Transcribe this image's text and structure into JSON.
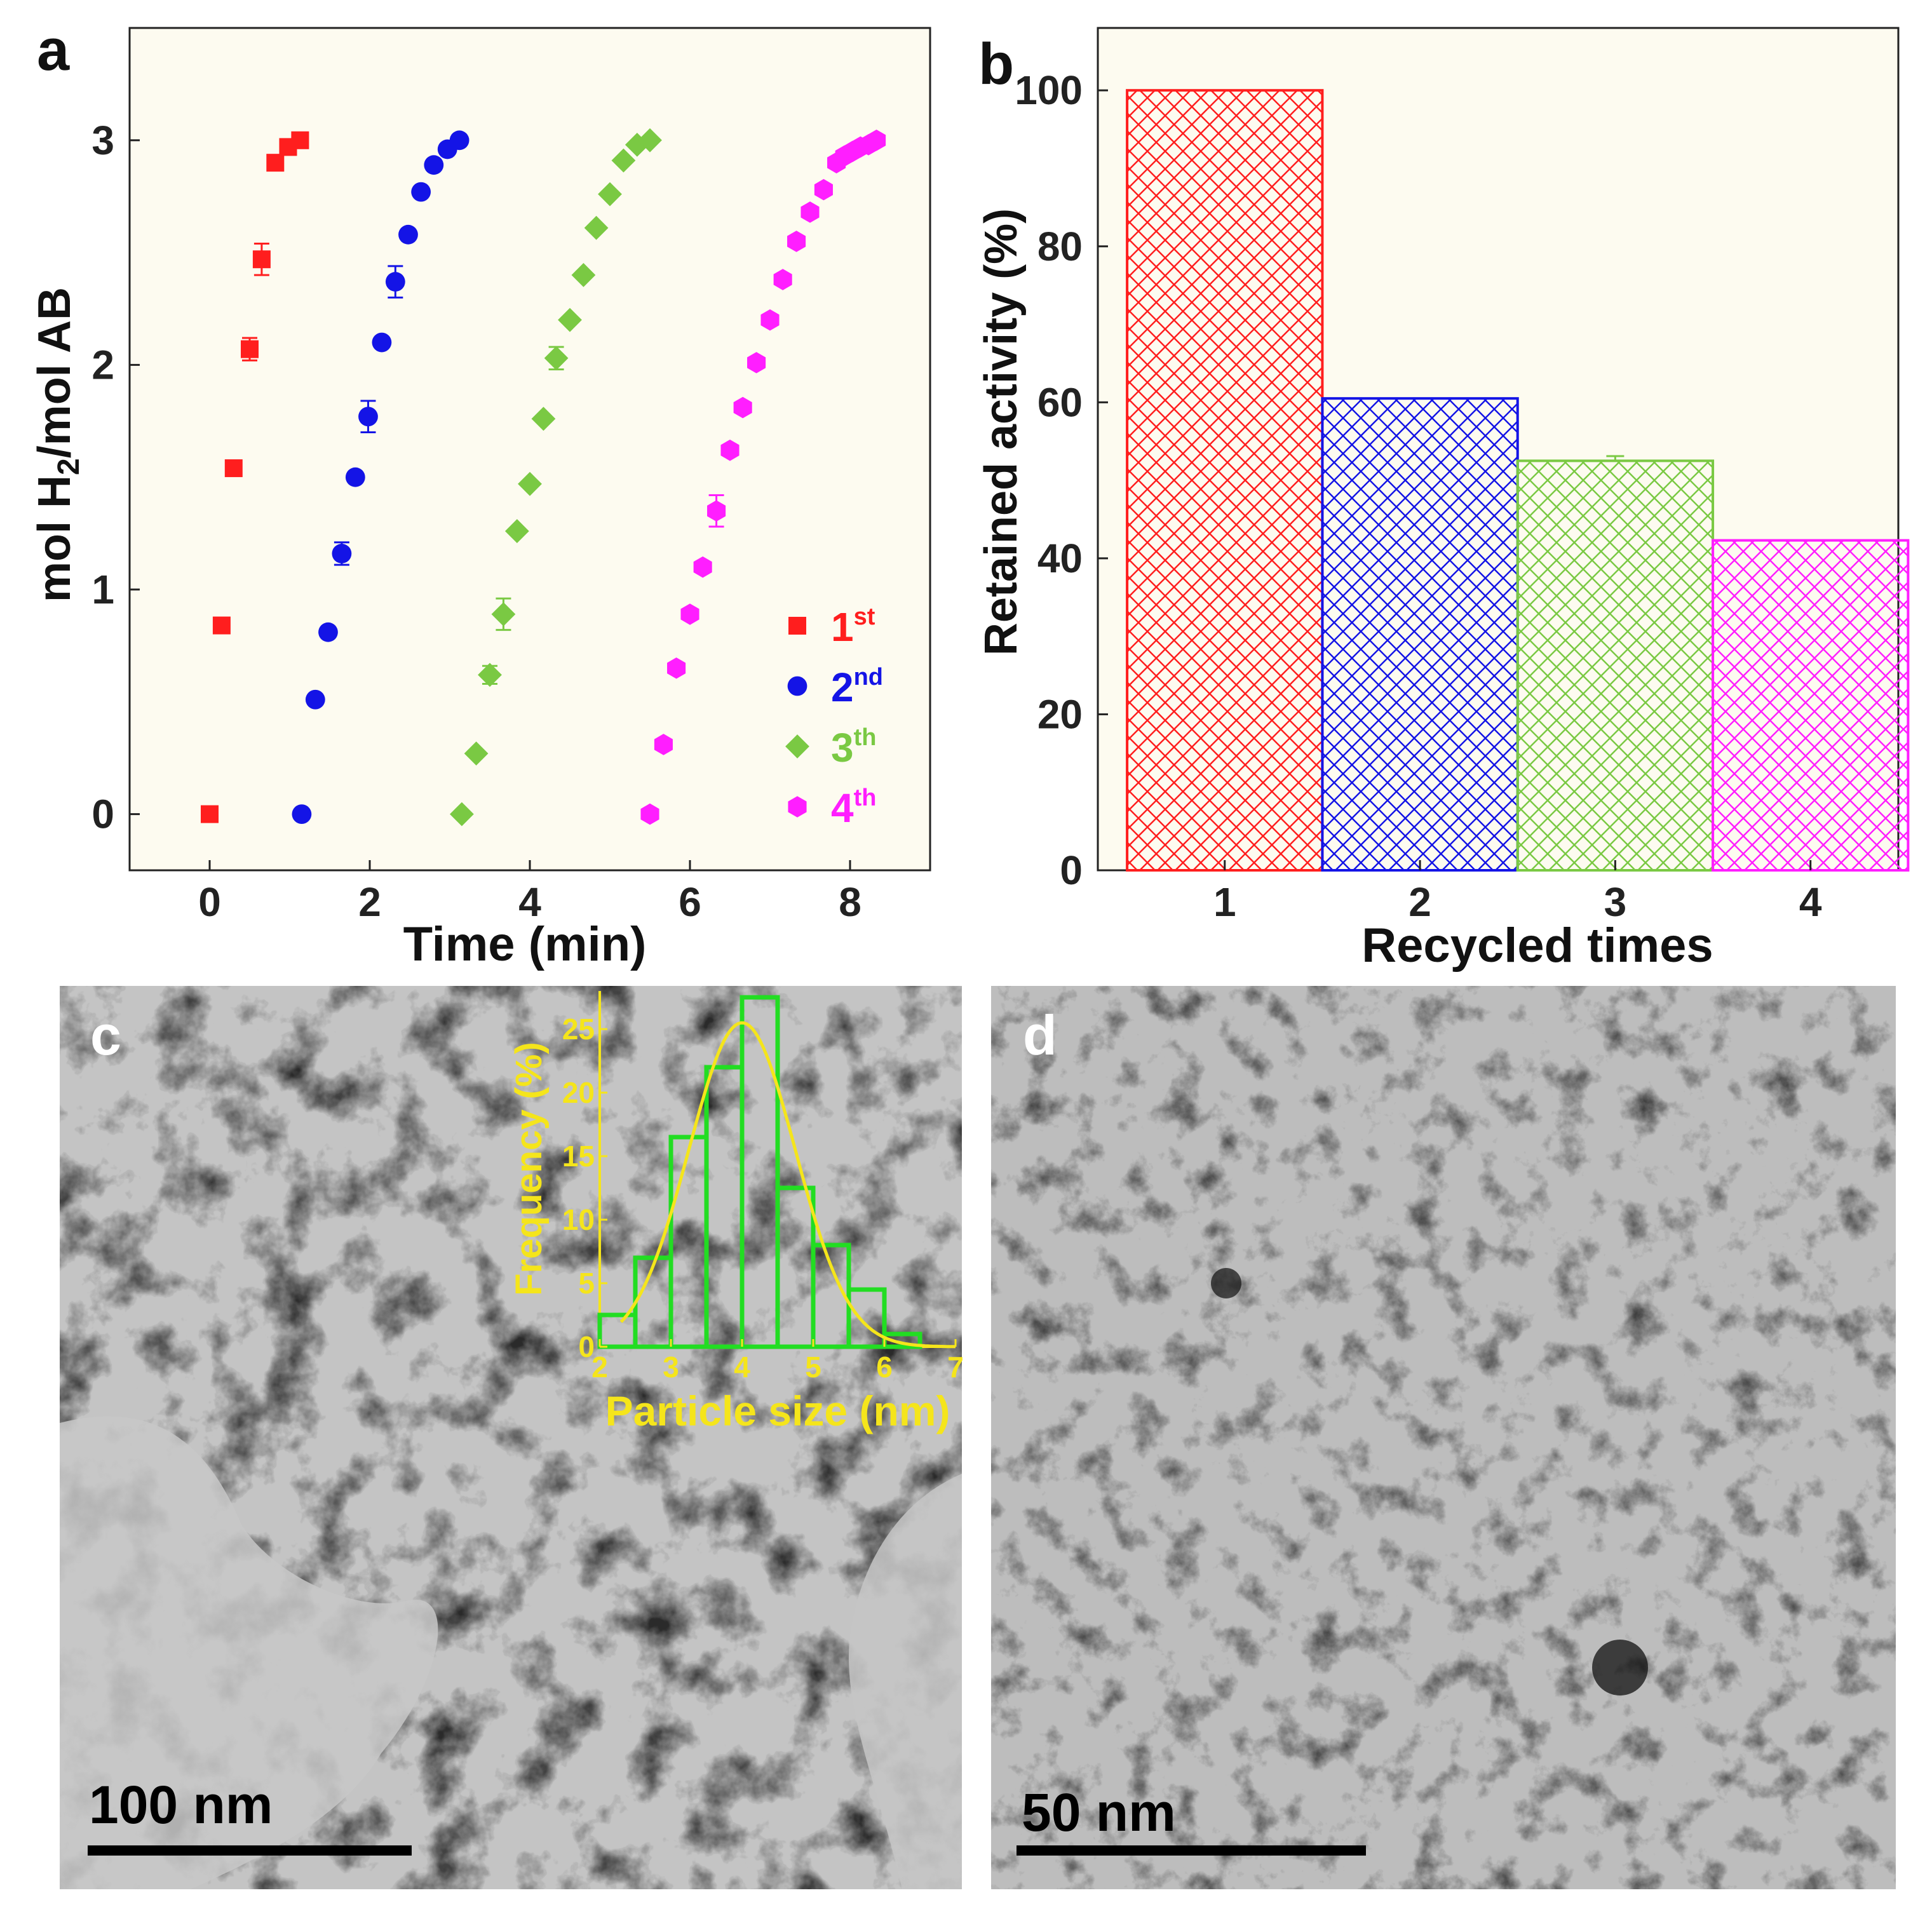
{
  "panels": {
    "a": "a",
    "b": "b",
    "c": "c",
    "d": "d"
  },
  "colors": {
    "background": "#fdfbf0",
    "first": "#ff1e1e",
    "second": "#1414e6",
    "third": "#7ac943",
    "fourth": "#ff1eff",
    "inset": "#f5e51b",
    "inset_bar": "#22dd22"
  },
  "scale_bars": {
    "c": "100 nm",
    "d": "50 nm"
  },
  "chart_data": [
    {
      "id": "a",
      "type": "scatter",
      "xlabel": "Time (min)",
      "ylabel_parts": [
        "mol H",
        "2",
        "/mol AB"
      ],
      "xlim": [
        -1,
        9
      ],
      "ylim": [
        -0.25,
        3.5
      ],
      "xticks": [
        0,
        2,
        4,
        6,
        8
      ],
      "yticks": [
        0,
        1,
        2,
        3
      ],
      "legend_position": "bottom-right",
      "series": [
        {
          "name": "1",
          "sup": "st",
          "marker": "square",
          "color": "#ff1e1e",
          "x": [
            0,
            0.15,
            0.3,
            0.5,
            0.65,
            0.82,
            0.98,
            1.13
          ],
          "y": [
            0,
            0.84,
            1.54,
            2.07,
            2.47,
            2.9,
            2.97,
            3.0
          ],
          "err": [
            0,
            0,
            0,
            0.05,
            0.07,
            0,
            0,
            0
          ]
        },
        {
          "name": "2",
          "sup": "nd",
          "marker": "circle",
          "color": "#1414e6",
          "x": [
            1.15,
            1.32,
            1.48,
            1.65,
            1.82,
            1.98,
            2.15,
            2.32,
            2.48,
            2.64,
            2.8,
            2.97,
            3.12
          ],
          "y": [
            0,
            0.51,
            0.81,
            1.16,
            1.5,
            1.77,
            2.1,
            2.37,
            2.58,
            2.77,
            2.89,
            2.96,
            3.0
          ],
          "err": [
            0,
            0,
            0,
            0.05,
            0,
            0.07,
            0,
            0.07,
            0,
            0,
            0,
            0,
            0
          ]
        },
        {
          "name": "3",
          "sup": "th",
          "marker": "diamond",
          "color": "#7ac943",
          "x": [
            3.15,
            3.33,
            3.5,
            3.67,
            3.84,
            4.0,
            4.17,
            4.33,
            4.5,
            4.67,
            4.83,
            5.0,
            5.17,
            5.34,
            5.5
          ],
          "y": [
            0,
            0.27,
            0.62,
            0.89,
            1.26,
            1.47,
            1.76,
            2.03,
            2.2,
            2.4,
            2.61,
            2.76,
            2.91,
            2.98,
            3.0
          ],
          "err": [
            0,
            0,
            0.04,
            0.07,
            0,
            0,
            0,
            0.05,
            0,
            0,
            0,
            0,
            0,
            0,
            0
          ]
        },
        {
          "name": "4",
          "sup": "th",
          "marker": "hexagon",
          "color": "#ff1eff",
          "x": [
            5.5,
            5.67,
            5.83,
            6.0,
            6.16,
            6.33,
            6.5,
            6.66,
            6.83,
            7.0,
            7.16,
            7.33,
            7.5,
            7.67,
            7.83,
            7.93,
            8.03,
            8.13,
            8.23,
            8.33
          ],
          "y": [
            0,
            0.31,
            0.65,
            0.89,
            1.1,
            1.35,
            1.62,
            1.81,
            2.01,
            2.2,
            2.38,
            2.55,
            2.68,
            2.78,
            2.9,
            2.93,
            2.95,
            2.97,
            2.98,
            3.0
          ],
          "err": [
            0,
            0,
            0,
            0,
            0,
            0.07,
            0,
            0,
            0,
            0,
            0,
            0,
            0,
            0,
            0,
            0,
            0,
            0,
            0,
            0
          ]
        }
      ]
    },
    {
      "id": "b",
      "type": "bar",
      "xlabel": "Recycled times",
      "ylabel": "Retained activity (%)",
      "categories": [
        "1",
        "2",
        "3",
        "4"
      ],
      "values": [
        100,
        60.5,
        52.5,
        42.3
      ],
      "err": [
        0,
        0,
        0.6,
        0
      ],
      "colors": [
        "#ff1e1e",
        "#1414e6",
        "#7ac943",
        "#ff1eff"
      ],
      "fill": "cross-hatch",
      "xlim": [
        0.35,
        4.45
      ],
      "ylim": [
        0,
        108
      ],
      "yticks": [
        0,
        20,
        40,
        60,
        80,
        100
      ]
    },
    {
      "id": "c-inset",
      "type": "bar",
      "xlabel": "Particle size (nm)",
      "ylabel": "Frequency (%)",
      "bin_width": 0.5,
      "bin_starts": [
        2,
        2.5,
        3,
        3.5,
        4,
        4.5,
        5,
        5.5,
        6
      ],
      "values": [
        2.5,
        7,
        16.5,
        22,
        27.5,
        12.5,
        8,
        4.5,
        1
      ],
      "fit": {
        "type": "gaussian",
        "mean": 4.0,
        "sd": 0.75,
        "peak": 25.5
      },
      "xlim": [
        2,
        7
      ],
      "ylim": [
        0,
        28
      ],
      "xticks": [
        2,
        3,
        4,
        5,
        6,
        7
      ],
      "yticks": [
        0,
        5,
        10,
        15,
        20,
        25
      ]
    }
  ]
}
